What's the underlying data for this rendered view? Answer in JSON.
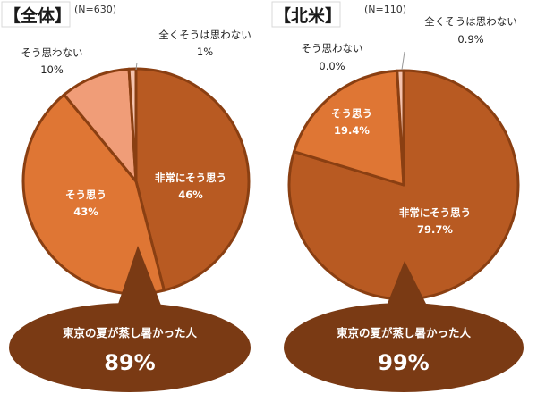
{
  "chart_data": [
    {
      "type": "pie",
      "title": "【全体】",
      "n_label": "(N=630)",
      "slices": [
        {
          "label": "非常にそう思う",
          "value": 46,
          "value_label": "46%",
          "color": "#B85A22"
        },
        {
          "label": "そう思う",
          "value": 43,
          "value_label": "43%",
          "color": "#DF7634"
        },
        {
          "label": "そう思わない",
          "value": 10,
          "value_label": "10%",
          "color": "#F09D78"
        },
        {
          "label": "全くそうは思わない",
          "value": 1,
          "value_label": "1%",
          "color": "#F5C3AE"
        }
      ],
      "callout": {
        "text": "東京の夏が蒸し暑かった人",
        "value": "89%",
        "color": "#7A3A14"
      }
    },
    {
      "type": "pie",
      "title": "【北米】",
      "n_label": "(N=110)",
      "slices": [
        {
          "label": "非常にそう思う",
          "value": 79.7,
          "value_label": "79.7%",
          "color": "#B85A22"
        },
        {
          "label": "そう思う",
          "value": 19.4,
          "value_label": "19.4%",
          "color": "#DF7634"
        },
        {
          "label": "そう思わない",
          "value": 0.0,
          "value_label": "0.0%",
          "color": "#F09D78"
        },
        {
          "label": "全くそうは思わない",
          "value": 0.9,
          "value_label": "0.9%",
          "color": "#F5C3AE"
        }
      ],
      "callout": {
        "text": "東京の夏が蒸し暑かった人",
        "value": "99%",
        "color": "#7A3A14"
      }
    }
  ],
  "colors": {
    "slice_border": "#8A3F12",
    "gap": "#ffffff"
  }
}
